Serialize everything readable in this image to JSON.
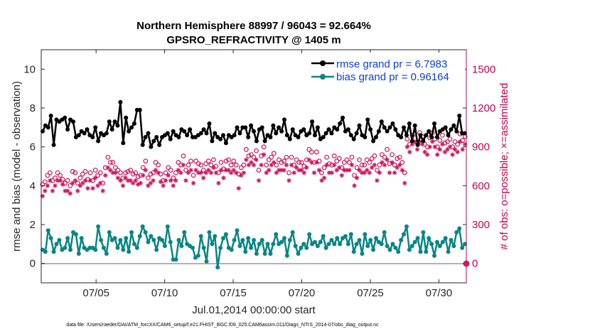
{
  "chart_data": {
    "type": "line",
    "title": "Northern Hemisphere 88997 / 96043 = 92.664%",
    "subtitle": "GPSRO_REFRACTIVITY @ 1405 m",
    "xlabel": "Jul.01,2014 00:00:00 start",
    "ylabel_left": "rmse and bias (model - observation)",
    "ylabel_right": "# of obs: o=possible; ×=assimilated",
    "footer": "data file: /Users/raeder/DAI/ATM_forcXX/CAM6_setup/f.e21.FHIST_BGC.f09_025.CAM6assim.011/Diags_NTrS_2014-07/obs_diag_output.nc",
    "xlim": [
      1,
      32
    ],
    "ylim_left": [
      -1,
      11
    ],
    "ylim_right": [
      -150,
      1650
    ],
    "x_ticks": [
      {
        "value": 5,
        "label": "07/05"
      },
      {
        "value": 10,
        "label": "07/10"
      },
      {
        "value": 15,
        "label": "07/15"
      },
      {
        "value": 20,
        "label": "07/20"
      },
      {
        "value": 25,
        "label": "07/25"
      },
      {
        "value": 30,
        "label": "07/30"
      }
    ],
    "y_ticks_left": [
      0,
      2,
      4,
      6,
      8,
      10
    ],
    "y_ticks_right": [
      0,
      300,
      600,
      900,
      1200,
      1500
    ],
    "legend_position": "top-right",
    "colors": {
      "rmse": "#000000",
      "bias": "#0a8585",
      "obs": "#d0185a",
      "legend_text": "#0a3fe0",
      "right_axis": "#c8004a",
      "zero_line": "#b3b3b3"
    },
    "series": [
      {
        "name": "rmse grand pr = 6.7983",
        "values": [
          6.8,
          7.1,
          7.0,
          7.6,
          6.1,
          7.4,
          7.3,
          7.4,
          7.5,
          6.9,
          7.4,
          7.3,
          6.5,
          6.6,
          6.8,
          6.7,
          6.9,
          6.6,
          6.5,
          7.0,
          6.3,
          6.7,
          6.6,
          6.7,
          7.3,
          6.9,
          7.3,
          7.1,
          8.3,
          6.2,
          7.5,
          6.8,
          7.0,
          7.2,
          7.9,
          7.9,
          6.1,
          6.5,
          6.7,
          6.0,
          6.3,
          6.5,
          6.1,
          6.5,
          6.6,
          6.7,
          6.4,
          6.8,
          6.6,
          6.5,
          6.9,
          6.8,
          6.6,
          6.9,
          6.5,
          6.5,
          6.6,
          6.7,
          6.9,
          6.7,
          7.2,
          6.3,
          6.7,
          6.5,
          6.4,
          6.6,
          6.2,
          6.6,
          6.5,
          6.6,
          7.0,
          6.7,
          7.0,
          7.0,
          6.5,
          7.1,
          6.8,
          6.3,
          6.9,
          7.0,
          6.3,
          6.6,
          6.5,
          7.1,
          6.7,
          7.0,
          6.8,
          7.4,
          6.6,
          6.4,
          6.9,
          6.6,
          6.5,
          6.8,
          6.9,
          6.6,
          6.7,
          7.3,
          6.6,
          7.0,
          6.4,
          6.5,
          6.7,
          6.9,
          6.7,
          7.0,
          6.9,
          7.2,
          7.5,
          6.8,
          6.9,
          6.6,
          6.4,
          6.7,
          7.1,
          6.6,
          6.5,
          7.4,
          6.9,
          6.3,
          6.5,
          6.8,
          7.3,
          7.0,
          6.8,
          7.0,
          7.2,
          6.9,
          6.6,
          6.5,
          7.0,
          6.6,
          7.2,
          6.3,
          7.1,
          6.1,
          6.6,
          6.3,
          6.6,
          6.8,
          6.5,
          7.2,
          6.5,
          6.8,
          6.9,
          7.0,
          6.6,
          6.9,
          7.1,
          6.8,
          7.6,
          6.7,
          6.7
        ],
        "markers_visible": true
      },
      {
        "name": "bias grand pr = 0.96164",
        "values": [
          0.7,
          0.6,
          1.7,
          1.3,
          0.6,
          1.0,
          1.2,
          0.7,
          0.8,
          1.3,
          0.7,
          1.6,
          1.5,
          0.5,
          1.3,
          0.8,
          0.7,
          0.8,
          0.8,
          0.7,
          1.9,
          1.2,
          0.8,
          0.5,
          1.6,
          1.2,
          1.3,
          0.8,
          1.2,
          0.7,
          1.3,
          0.6,
          1.6,
          1.0,
          0.8,
          1.4,
          1.9,
          1.6,
          1.1,
          1.4,
          1.2,
          0.7,
          1.3,
          1.2,
          0.9,
          1.9,
          1.1,
          0.2,
          0.2,
          1.2,
          0.9,
          1.6,
          1.0,
          0.9,
          0.8,
          0.3,
          0.4,
          1.4,
          0.8,
          0.1,
          1.6,
          1.0,
          1.4,
          -0.2,
          0.8,
          1.3,
          1.5,
          0.8,
          0.7,
          1.2,
          1.7,
          0.9,
          1.2,
          0.6,
          1.3,
          0.8,
          1.2,
          0.5,
          1.0,
          1.2,
          0.5,
          1.0,
          0.5,
          1.0,
          1.5,
          1.0,
          1.1,
          1.3,
          0.4,
          1.2,
          1.6,
          0.9,
          0.5,
          0.8,
          1.0,
          0.8,
          1.5,
          1.0,
          1.1,
          0.9,
          1.1,
          1.4,
          0.8,
          1.0,
          1.2,
          1.0,
          1.3,
          1.0,
          1.3,
          1.4,
          1.0,
          1.5,
          0.6,
          1.0,
          1.2,
          0.5,
          1.5,
          0.9,
          1.2,
          0.7,
          1.3,
          1.1,
          1.0,
          1.6,
          0.9,
          0.7,
          1.0,
          0.8,
          0.6,
          1.2,
          1.5,
          1.9,
          0.7,
          0.9,
          1.1,
          1.3,
          0.6,
          1.6,
          0.6,
          1.3,
          1.0,
          0.4,
          1.1,
          0.9,
          1.1,
          1.3,
          0.6,
          1.2,
          0.9,
          1.6,
          1.8,
          0.8,
          1.0
        ],
        "markers_visible": true
      },
      {
        "name": "possible",
        "marker": "circle",
        "values": [
          610,
          630,
          680,
          700,
          640,
          660,
          700,
          680,
          650,
          620,
          640,
          600,
          710,
          700,
          620,
          660,
          690,
          710,
          650,
          700,
          640,
          720,
          680,
          700,
          620,
          740,
          820,
          780,
          780,
          740,
          720,
          700,
          660,
          700,
          710,
          720,
          690,
          700,
          670,
          680,
          740,
          790,
          660,
          690,
          700,
          780,
          760,
          690,
          640,
          700,
          740,
          720,
          660,
          700,
          780,
          760,
          830,
          720,
          760,
          790,
          680,
          790,
          770,
          760,
          720,
          770,
          790,
          760,
          800,
          750,
          700,
          780,
          730,
          790,
          800,
          760,
          790,
          760,
          690,
          740,
          760,
          880,
          830,
          840,
          820,
          870,
          720,
          830,
          900,
          760,
          800,
          820,
          850,
          760,
          800,
          780,
          790,
          820,
          700,
          820,
          760,
          800,
          780,
          780,
          750,
          800,
          880,
          860,
          780,
          860,
          790,
          700,
          740,
          820,
          770,
          760,
          830,
          790,
          810,
          740,
          780,
          800,
          780,
          820,
          680,
          740,
          800,
          760,
          760,
          800,
          780,
          810,
          830,
          720,
          760,
          840,
          820,
          880,
          770,
          840,
          760,
          810,
          820,
          780,
          700,
          960,
          920,
          990,
          1000,
          930,
          1010,
          980,
          920,
          900,
          970,
          1010,
          960,
          900,
          950,
          990,
          930,
          940,
          960,
          900,
          940,
          920,
          1000,
          950,
          980
        ],
        "markers_visible": true
      },
      {
        "name": "assimilated",
        "marker": "asterisk",
        "values": [
          520,
          560,
          600,
          640,
          560,
          600,
          640,
          640,
          610,
          560,
          560,
          540,
          620,
          640,
          560,
          600,
          620,
          640,
          580,
          640,
          580,
          660,
          600,
          620,
          560,
          680,
          740,
          720,
          700,
          700,
          660,
          640,
          600,
          660,
          640,
          640,
          620,
          640,
          610,
          620,
          680,
          720,
          600,
          620,
          640,
          720,
          700,
          630,
          600,
          640,
          680,
          640,
          600,
          640,
          720,
          700,
          760,
          640,
          700,
          720,
          620,
          720,
          700,
          700,
          660,
          700,
          720,
          700,
          740,
          700,
          620,
          720,
          660,
          720,
          720,
          700,
          720,
          700,
          580,
          680,
          700,
          800,
          760,
          780,
          760,
          800,
          640,
          760,
          840,
          700,
          720,
          760,
          780,
          700,
          720,
          720,
          720,
          760,
          640,
          760,
          700,
          740,
          720,
          720,
          700,
          740,
          800,
          780,
          700,
          780,
          720,
          640,
          660,
          760,
          700,
          700,
          760,
          720,
          740,
          680,
          720,
          720,
          720,
          760,
          600,
          660,
          720,
          700,
          700,
          720,
          700,
          740,
          760,
          640,
          700,
          780,
          760,
          800,
          700,
          780,
          700,
          740,
          760,
          720,
          620,
          900,
          860,
          920,
          940,
          880,
          940,
          920,
          860,
          840,
          900,
          940,
          900,
          840,
          880,
          920,
          860,
          880,
          900,
          840,
          880,
          860,
          940,
          880,
          920
        ],
        "markers_visible": true
      }
    ]
  },
  "legend": {
    "rmse_label": "rmse grand pr = 6.7983",
    "bias_label": "bias grand pr = 0.96164"
  }
}
